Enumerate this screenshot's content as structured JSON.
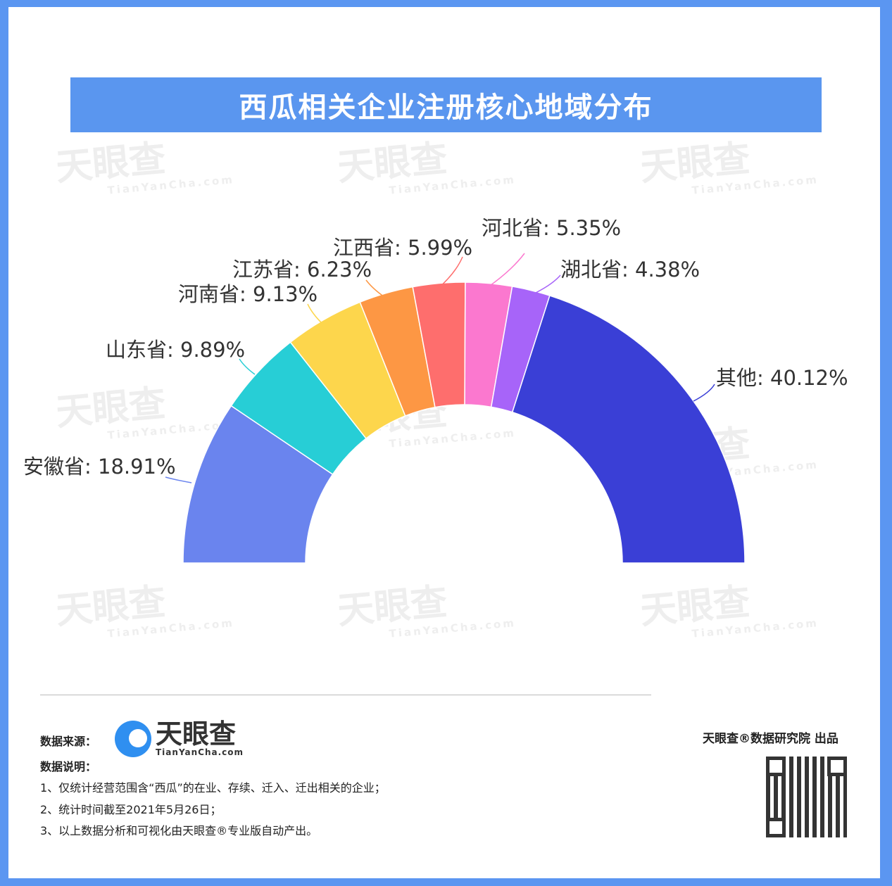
{
  "title": "西瓜相关企业注册核心地域分布",
  "watermark": {
    "brand": "天眼查",
    "domain": "TianYanCha.com"
  },
  "chart_data": {
    "type": "pie",
    "variant": "half-donut",
    "title": "西瓜相关企业注册核心地域分布",
    "categories": [
      "安徽省",
      "山东省",
      "河南省",
      "江苏省",
      "江西省",
      "河北省",
      "湖北省",
      "其他"
    ],
    "values": [
      18.91,
      9.89,
      9.13,
      6.23,
      5.99,
      5.35,
      4.38,
      40.12
    ],
    "unit": "%",
    "labels": [
      "安徽省: 18.91%",
      "山东省: 9.89%",
      "河南省: 9.13%",
      "江苏省: 6.23%",
      "江西省: 5.99%",
      "河北省: 5.35%",
      "湖北省: 4.38%",
      "其他: 40.12%"
    ],
    "colors": [
      "#6a84ee",
      "#27ced6",
      "#fdd64c",
      "#fd9744",
      "#fe6e6d",
      "#fb78cf",
      "#a764f9",
      "#3a3fd6"
    ]
  },
  "footer": {
    "source_label": "数据来源：",
    "logo_brand": "天眼查",
    "logo_domain": "TianYanCha.com",
    "notes_label": "数据说明：",
    "notes": [
      "1、仅统计经营范围含“西瓜”的在业、存续、迁入、迁出相关的企业；",
      "2、统计时间截至2021年5月26日；",
      "3、以上数据分析和可视化由天眼查®专业版自动产出。"
    ],
    "producer": "天眼查®数据研究院 出品"
  },
  "colors": {
    "border": "#5b96f1",
    "title_bar": "#5a96ef"
  }
}
